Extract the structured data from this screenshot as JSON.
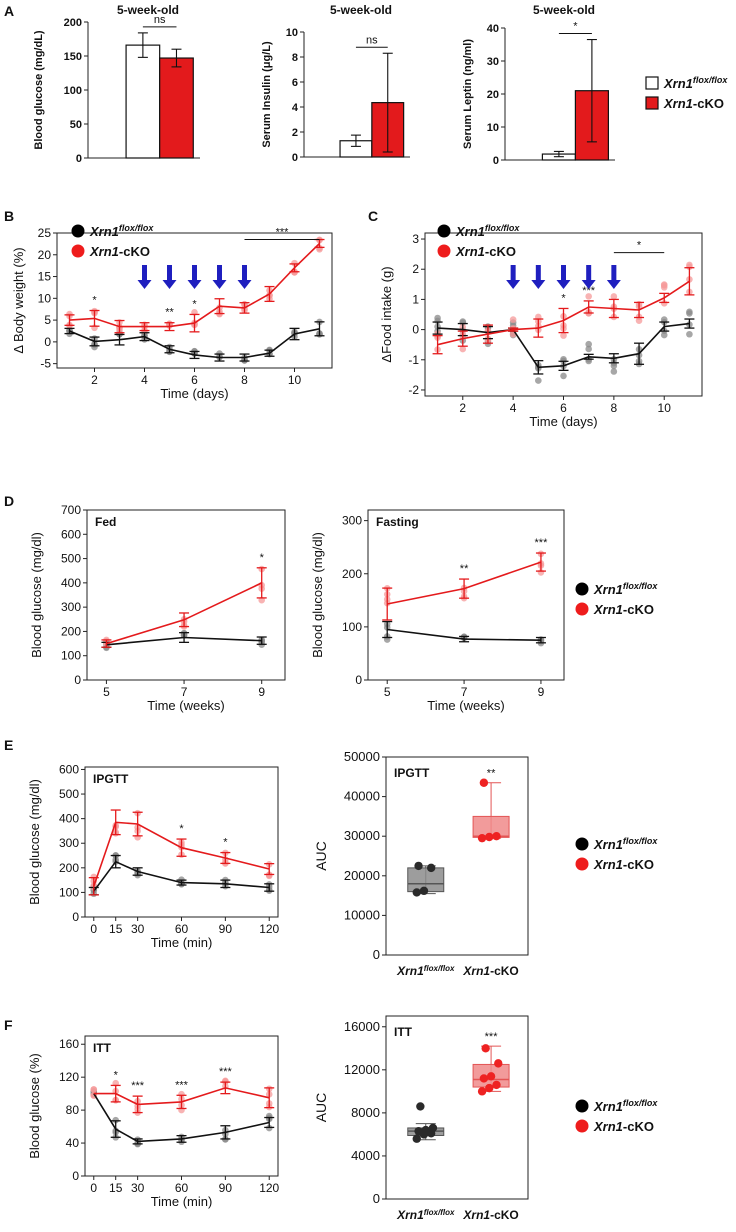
{
  "figure": {
    "panel_labels": [
      "A",
      "B",
      "C",
      "D",
      "E",
      "F"
    ],
    "legend": {
      "control": "Xrn1",
      "control_sup": "flox/flox",
      "cko": "Xrn1",
      "cko_suffix": "-cKO"
    },
    "colors": {
      "control": "#111111",
      "cko": "#e41a1c",
      "control_point": "#8a8a8a",
      "cko_point": "#f59a9a",
      "arrow": "#1f1fbf",
      "box_control": "#8c8c8c",
      "box_cko": "#f08a8a",
      "bar_cko": "#e31a1c"
    }
  },
  "chart_data": [
    {
      "id": "A1",
      "type": "bar",
      "title": "5-week-old",
      "ylabel": "Blood glucose (mg/dL)",
      "ylim": [
        0,
        200
      ],
      "yticks": [
        0,
        50,
        100,
        150,
        200
      ],
      "series": [
        {
          "name": "Xrn1flox/flox",
          "value": 166,
          "err": 18
        },
        {
          "name": "Xrn1-cKO",
          "value": 147,
          "err": 13
        }
      ],
      "sig": "ns"
    },
    {
      "id": "A2",
      "type": "bar",
      "title": "5-week-old",
      "ylabel": "Serum Insulin (μg/L)",
      "ylim": [
        0,
        10
      ],
      "yticks": [
        0,
        2,
        4,
        6,
        8,
        10
      ],
      "series": [
        {
          "name": "Xrn1flox/flox",
          "value": 1.3,
          "err": 0.45
        },
        {
          "name": "Xrn1-cKO",
          "value": 4.35,
          "err": 3.95
        }
      ],
      "sig": "ns"
    },
    {
      "id": "A3",
      "type": "bar",
      "title": "5-week-old",
      "ylabel": "Serum Leptin (ng/ml)",
      "ylim": [
        0,
        40
      ],
      "yticks": [
        0,
        10,
        20,
        30,
        40
      ],
      "series": [
        {
          "name": "Xrn1flox/flox",
          "value": 1.8,
          "err": 0.8
        },
        {
          "name": "Xrn1-cKO",
          "value": 21,
          "err": 15.5
        }
      ],
      "sig": "*"
    },
    {
      "id": "B",
      "type": "line",
      "xlabel": "Time (days)",
      "ylabel": "Δ Body weight (%)",
      "xlim": [
        0.5,
        11.5
      ],
      "xticks": [
        2,
        4,
        6,
        8,
        10
      ],
      "ylim": [
        -6,
        25
      ],
      "yticks": [
        -5,
        0,
        5,
        10,
        15,
        20,
        25
      ],
      "x": [
        1,
        2,
        3,
        4,
        5,
        6,
        7,
        8,
        9,
        10,
        11
      ],
      "series": [
        {
          "name": "Xrn1flox/flox",
          "values": [
            2.5,
            0.1,
            0.5,
            1.2,
            -1.7,
            -3.0,
            -3.6,
            -3.6,
            -2.6,
            1.8,
            3.0
          ],
          "err": [
            0.6,
            1.0,
            1.2,
            0.9,
            0.8,
            0.8,
            0.8,
            0.8,
            0.7,
            1.3,
            1.6
          ]
        },
        {
          "name": "Xrn1-cKO",
          "values": [
            5.0,
            5.4,
            3.5,
            3.5,
            3.5,
            4.3,
            8.2,
            7.8,
            11.0,
            17.0,
            22.6
          ],
          "err": [
            1.2,
            1.8,
            1.4,
            0.9,
            0.9,
            2.0,
            1.7,
            1.2,
            1.7,
            0.9,
            0.9
          ]
        }
      ],
      "sig": [
        {
          "x": 2,
          "text": "*"
        },
        {
          "x": 5,
          "text": "**"
        },
        {
          "x": 6,
          "text": "*"
        }
      ],
      "bracket": {
        "x1": 8,
        "x2": 11,
        "y": 23.5,
        "text": "***"
      },
      "arrows_x": [
        4,
        5,
        6,
        7,
        8
      ]
    },
    {
      "id": "C",
      "type": "line",
      "xlabel": "Time (days)",
      "ylabel": "ΔFood intake (g)",
      "xlim": [
        0.5,
        11.5
      ],
      "xticks": [
        2,
        4,
        6,
        8,
        10
      ],
      "ylim": [
        -2.2,
        3.2
      ],
      "yticks": [
        -2,
        -1,
        0,
        1,
        2,
        3
      ],
      "x": [
        1,
        2,
        3,
        4,
        5,
        6,
        7,
        8,
        9,
        10,
        11
      ],
      "series": [
        {
          "name": "Xrn1flox/flox",
          "values": [
            0.05,
            0.0,
            -0.1,
            0.0,
            -1.25,
            -1.2,
            -0.9,
            -0.95,
            -0.8,
            0.1,
            0.2
          ],
          "err": [
            0.2,
            0.2,
            0.2,
            0.05,
            0.22,
            0.15,
            0.08,
            0.15,
            0.35,
            0.15,
            0.15
          ]
        },
        {
          "name": "Xrn1-cKO",
          "values": [
            -0.5,
            -0.3,
            -0.15,
            0.0,
            0.05,
            0.3,
            0.75,
            0.7,
            0.65,
            1.05,
            1.6
          ],
          "err": [
            0.3,
            0.25,
            0.3,
            0.05,
            0.3,
            0.4,
            0.2,
            0.3,
            0.25,
            0.15,
            0.45
          ]
        }
      ],
      "sig": [
        {
          "x": 6,
          "text": "*"
        },
        {
          "x": 7,
          "text": "***"
        }
      ],
      "bracket": {
        "x1": 8,
        "x2": 10,
        "y": 2.55,
        "text": "*"
      },
      "arrows_x": [
        4,
        5,
        6,
        7,
        8
      ]
    },
    {
      "id": "D1",
      "type": "line",
      "title": "Fed",
      "xlabel": "Time (weeks)",
      "ylabel": "Blood glucose (mg/dl)",
      "xlim": [
        4.5,
        9.6
      ],
      "xticks": [
        5,
        7,
        9
      ],
      "ylim": [
        0,
        700
      ],
      "yticks": [
        0,
        100,
        200,
        300,
        400,
        500,
        600,
        700
      ],
      "x": [
        5,
        7,
        9
      ],
      "series": [
        {
          "name": "Xrn1flox/flox",
          "values": [
            145,
            175,
            162
          ],
          "err": [
            10,
            20,
            15
          ]
        },
        {
          "name": "Xrn1-cKO",
          "values": [
            150,
            248,
            400
          ],
          "err": [
            15,
            28,
            62
          ]
        }
      ],
      "sig": [
        {
          "x": 9,
          "text": "*"
        }
      ]
    },
    {
      "id": "D2",
      "type": "line",
      "title": "Fasting",
      "xlabel": "Time (weeks)",
      "ylabel": "Blood glucose (mg/dl)",
      "xlim": [
        4.5,
        9.6
      ],
      "xticks": [
        5,
        7,
        9
      ],
      "ylim": [
        0,
        320
      ],
      "yticks": [
        0,
        100,
        200,
        300
      ],
      "x": [
        5,
        7,
        9
      ],
      "series": [
        {
          "name": "Xrn1flox/flox",
          "values": [
            95,
            77,
            75
          ],
          "err": [
            15,
            5,
            5
          ]
        },
        {
          "name": "Xrn1-cKO",
          "values": [
            143,
            172,
            222
          ],
          "err": [
            30,
            18,
            17
          ]
        }
      ],
      "sig": [
        {
          "x": 7,
          "text": "**"
        },
        {
          "x": 9,
          "text": "***"
        }
      ]
    },
    {
      "id": "E1",
      "type": "line",
      "title": "IPGTT",
      "xlabel": "Time (min)",
      "ylabel": "Blood glucose (mg/dl)",
      "xlim": [
        -6,
        126
      ],
      "xticks": [
        0,
        15,
        30,
        60,
        90,
        120
      ],
      "ylim": [
        0,
        610
      ],
      "yticks": [
        0,
        100,
        200,
        300,
        400,
        500,
        600
      ],
      "x": [
        0,
        15,
        30,
        60,
        90,
        120
      ],
      "series": [
        {
          "name": "Xrn1flox/flox",
          "values": [
            105,
            225,
            185,
            140,
            135,
            120
          ],
          "err": [
            15,
            25,
            15,
            10,
            15,
            15
          ]
        },
        {
          "name": "Xrn1-cKO",
          "values": [
            125,
            385,
            378,
            282,
            240,
            195
          ],
          "err": [
            35,
            50,
            48,
            35,
            22,
            22
          ]
        }
      ],
      "sig": [
        {
          "x": 60,
          "text": "*"
        },
        {
          "x": 90,
          "text": "*"
        }
      ]
    },
    {
      "id": "E2",
      "type": "box",
      "title": "IPGTT",
      "ylabel": "AUC",
      "ylim": [
        0,
        50000
      ],
      "yticks": [
        0,
        10000,
        20000,
        30000,
        40000,
        50000
      ],
      "categories": [
        "Xrn1flox/flox",
        "Xrn1-cKO"
      ],
      "boxes": [
        {
          "min": 15500,
          "q1": 16000,
          "median": 18000,
          "q3": 22000,
          "max": 22500,
          "points": [
            15800,
            16200,
            22000,
            22500
          ]
        },
        {
          "min": 29500,
          "q1": 29700,
          "median": 30000,
          "q3": 35000,
          "max": 43500,
          "points": [
            29500,
            29800,
            30000,
            43500
          ]
        }
      ],
      "sig": "**"
    },
    {
      "id": "F1",
      "type": "line",
      "title": "ITT",
      "xlabel": "Time (min)",
      "ylabel": "Blood glucose (%)",
      "xlim": [
        -6,
        126
      ],
      "xticks": [
        0,
        15,
        30,
        60,
        90,
        120
      ],
      "ylim": [
        0,
        170
      ],
      "yticks": [
        0,
        40,
        80,
        120,
        160
      ],
      "x": [
        0,
        15,
        30,
        60,
        90,
        120
      ],
      "series": [
        {
          "name": "Xrn1flox/flox",
          "values": [
            100,
            57,
            42,
            45,
            53,
            65
          ],
          "err": [
            0,
            10,
            3,
            4,
            8,
            6
          ]
        },
        {
          "name": "Xrn1-cKO",
          "values": [
            100,
            100,
            87,
            90,
            107,
            95
          ],
          "err": [
            0,
            10,
            10,
            8,
            7,
            12
          ]
        }
      ],
      "sig": [
        {
          "x": 15,
          "text": "*"
        },
        {
          "x": 30,
          "text": "***"
        },
        {
          "x": 60,
          "text": "***"
        },
        {
          "x": 90,
          "text": "***"
        }
      ]
    },
    {
      "id": "F2",
      "type": "box",
      "title": "ITT",
      "ylabel": "AUC",
      "ylim": [
        0,
        17000
      ],
      "yticks": [
        0,
        4000,
        8000,
        12000,
        16000
      ],
      "categories": [
        "Xrn1flox/flox",
        "Xrn1-cKO"
      ],
      "boxes": [
        {
          "min": 5500,
          "q1": 5900,
          "median": 6300,
          "q3": 6600,
          "max": 7000,
          "points": [
            5600,
            6000,
            6100,
            6300,
            6400,
            6600,
            8600
          ]
        },
        {
          "min": 10000,
          "q1": 10400,
          "median": 11100,
          "q3": 12500,
          "max": 14200,
          "points": [
            10000,
            10300,
            10600,
            11200,
            11400,
            12600,
            14000
          ]
        }
      ],
      "sig": "***"
    }
  ]
}
